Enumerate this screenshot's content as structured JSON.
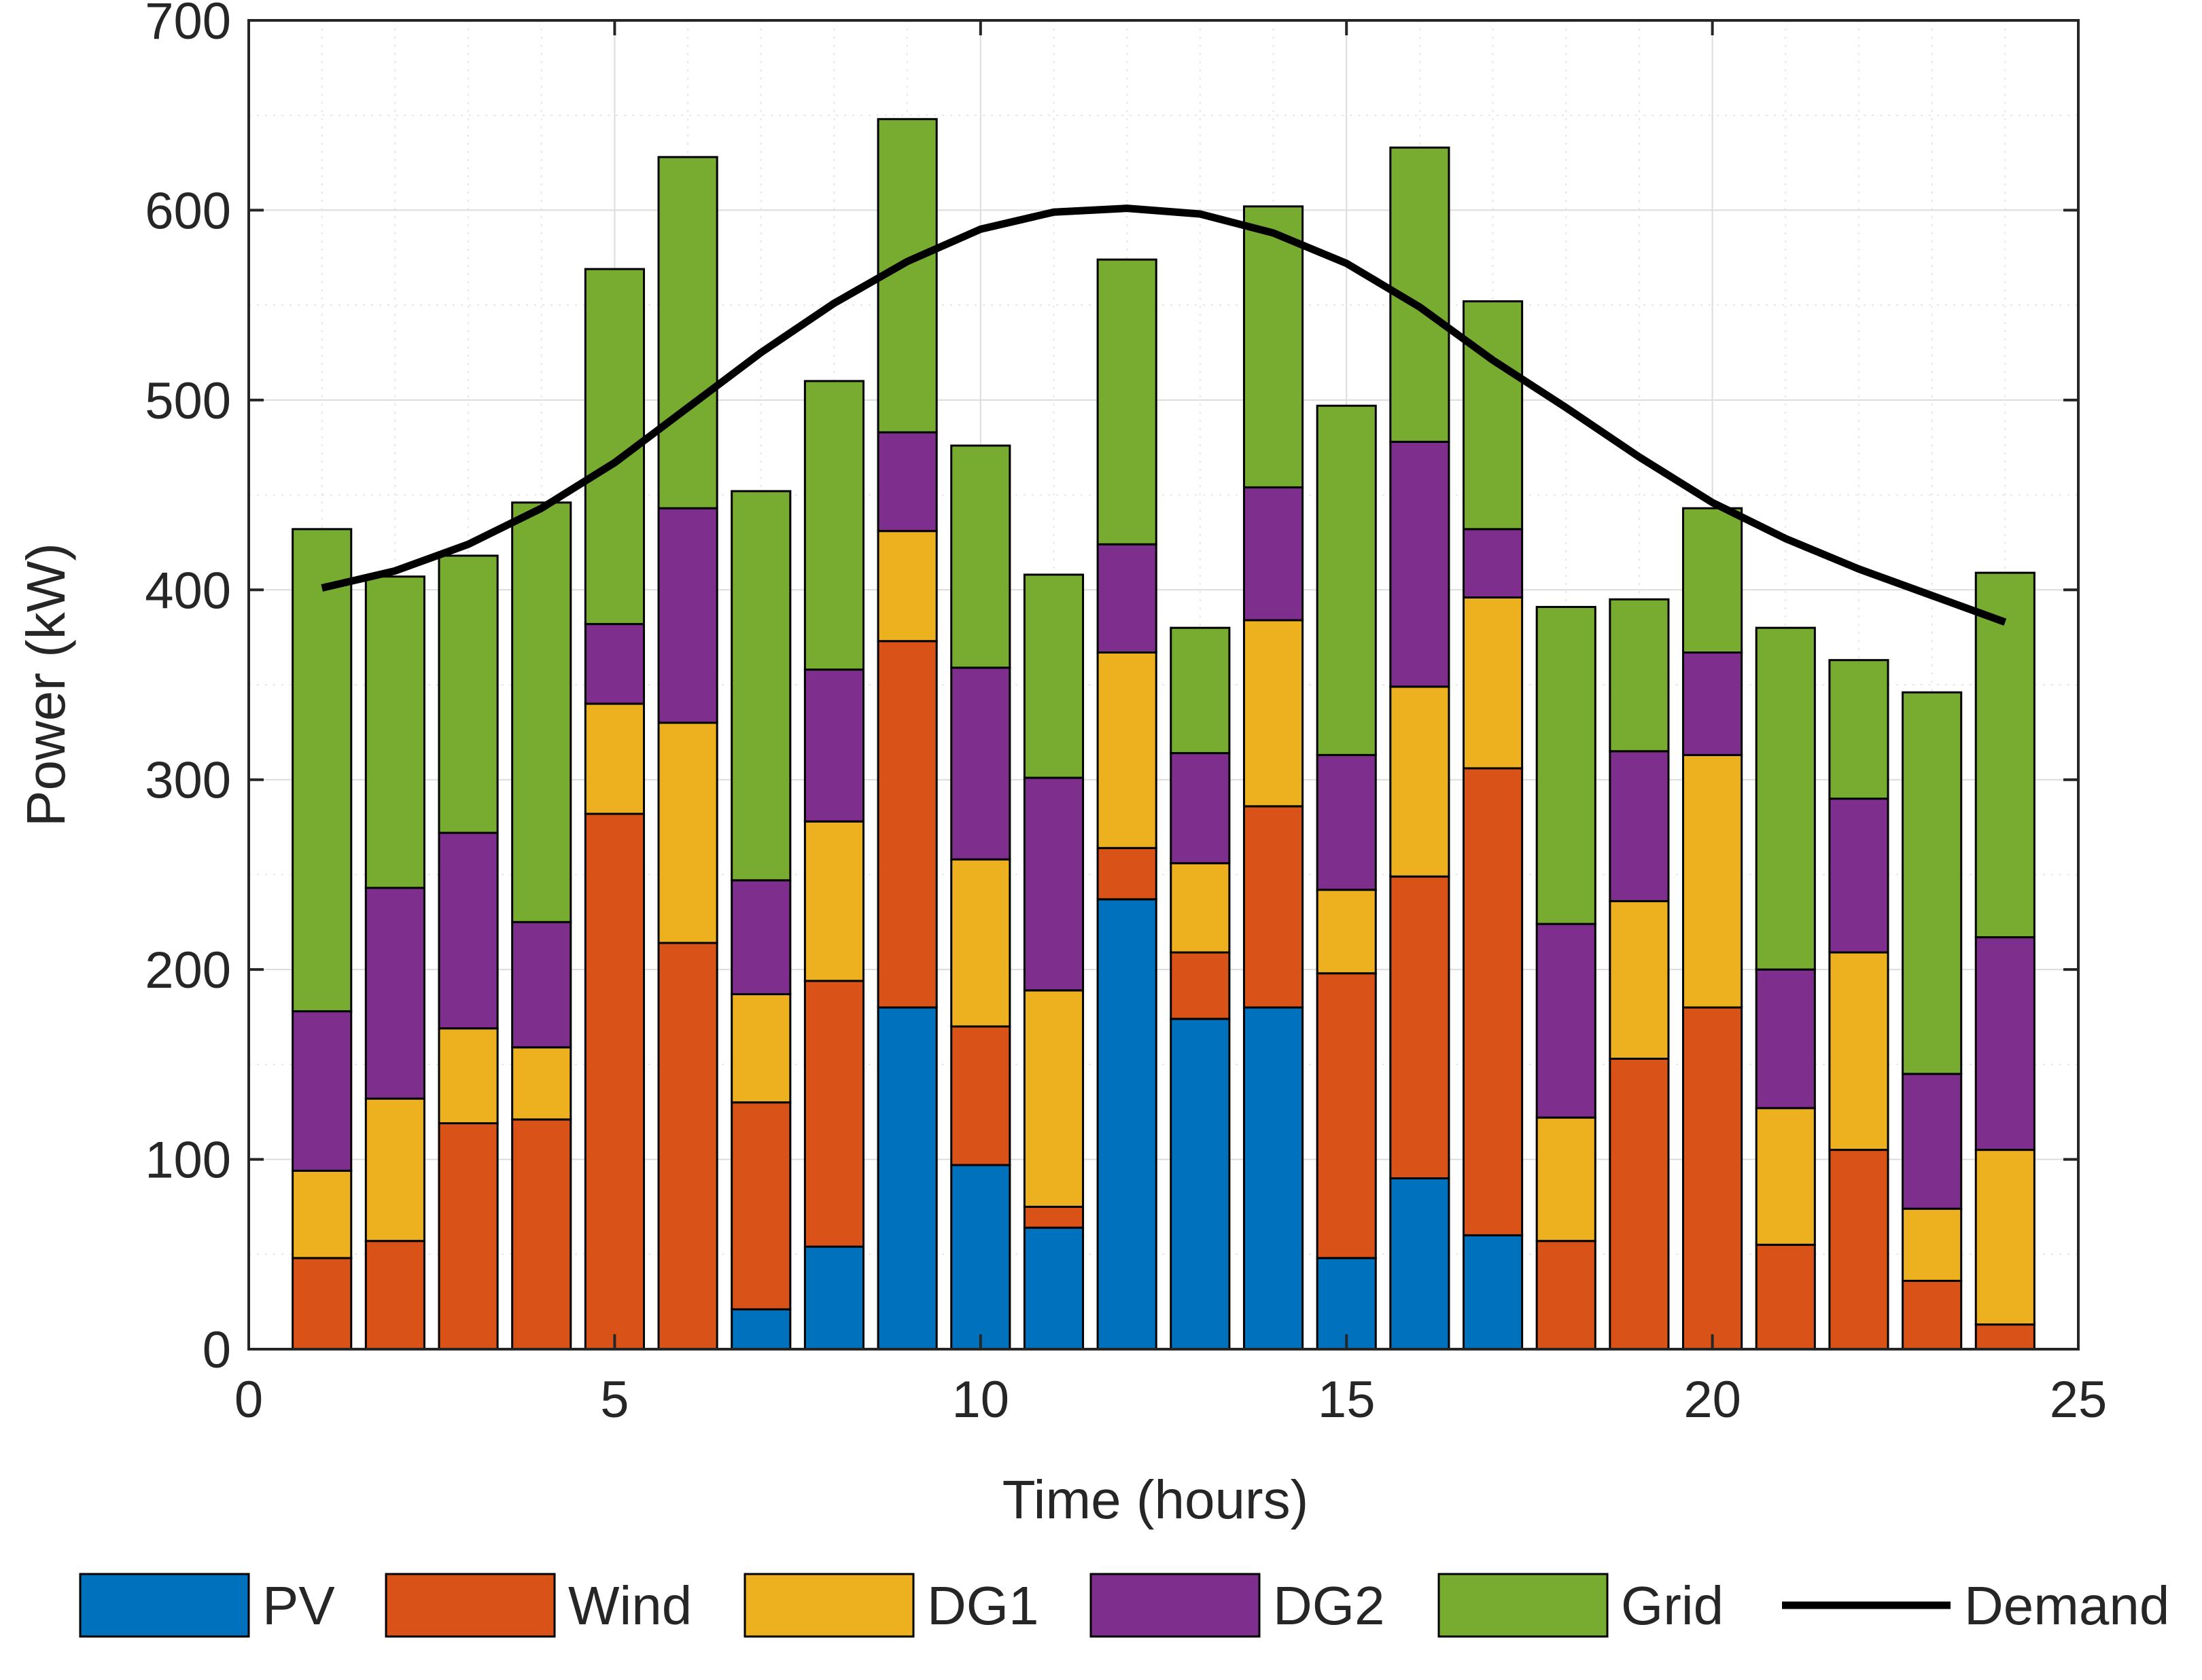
{
  "chart_data": {
    "type": "bar",
    "stacked": true,
    "title": "",
    "xlabel": "Time (hours)",
    "ylabel": "Power (kW)",
    "xlim": [
      0,
      25
    ],
    "ylim": [
      0,
      700
    ],
    "xticks": [
      0,
      5,
      10,
      15,
      20,
      25
    ],
    "yticks": [
      0,
      100,
      200,
      300,
      400,
      500,
      600,
      700
    ],
    "grid": true,
    "legend_position": "bottom",
    "x": [
      1,
      2,
      3,
      4,
      5,
      6,
      7,
      8,
      9,
      10,
      11,
      12,
      13,
      14,
      15,
      16,
      17,
      18,
      19,
      20,
      21,
      22,
      23,
      24
    ],
    "series": [
      {
        "name": "PV",
        "color": "#0072BD",
        "values": [
          0,
          0,
          0,
          0,
          0,
          0,
          21,
          54,
          180,
          97,
          64,
          237,
          174,
          180,
          48,
          90,
          60,
          0,
          0,
          0,
          0,
          0,
          0,
          0
        ]
      },
      {
        "name": "Wind",
        "color": "#D95319",
        "values": [
          48,
          57,
          119,
          121,
          282,
          214,
          109,
          140,
          193,
          73,
          11,
          27,
          35,
          106,
          150,
          159,
          246,
          57,
          153,
          180,
          55,
          105,
          36,
          13
        ]
      },
      {
        "name": "DG1",
        "color": "#EDB120",
        "values": [
          46,
          75,
          50,
          38,
          58,
          116,
          57,
          84,
          58,
          88,
          114,
          103,
          47,
          98,
          44,
          100,
          90,
          65,
          83,
          133,
          72,
          104,
          38,
          92
        ]
      },
      {
        "name": "DG2",
        "color": "#7E2F8E",
        "values": [
          84,
          111,
          103,
          66,
          42,
          113,
          60,
          80,
          52,
          101,
          112,
          57,
          58,
          70,
          71,
          129,
          36,
          102,
          79,
          54,
          73,
          81,
          71,
          112
        ]
      },
      {
        "name": "Grid",
        "color": "#77AC30",
        "values": [
          254,
          164,
          146,
          221,
          187,
          185,
          205,
          152,
          165,
          117,
          107,
          150,
          66,
          148,
          184,
          155,
          120,
          167,
          80,
          76,
          180,
          73,
          201,
          192
        ]
      }
    ],
    "line": {
      "name": "Demand",
      "color": "#000000",
      "x": [
        1,
        2,
        3,
        4,
        5,
        6,
        7,
        8,
        9,
        10,
        11,
        12,
        13,
        14,
        15,
        16,
        17,
        18,
        19,
        20,
        21,
        22,
        23,
        24
      ],
      "values": [
        401,
        410,
        424,
        443,
        467,
        496,
        525,
        551,
        573,
        590,
        599,
        601,
        598,
        588,
        572,
        549,
        521,
        496,
        470,
        446,
        427,
        411,
        397,
        383
      ]
    }
  }
}
